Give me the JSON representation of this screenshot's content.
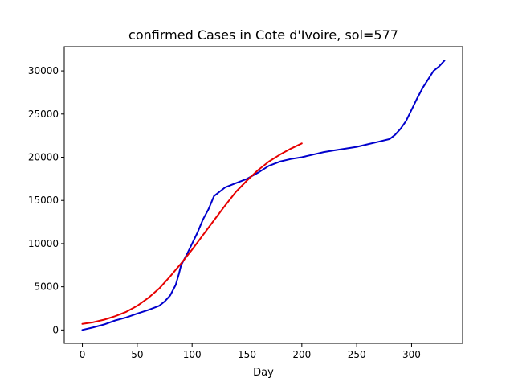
{
  "chart_data": {
    "type": "line",
    "title": "confirmed Cases in Cote d'Ivoire, sol=577",
    "xlabel": "Day",
    "ylabel": "",
    "xlim": [
      -16.5,
      346.5
    ],
    "ylim": [
      -1550,
      32800
    ],
    "xticks": [
      0,
      50,
      100,
      150,
      200,
      250,
      300
    ],
    "yticks": [
      0,
      5000,
      10000,
      15000,
      20000,
      25000,
      30000
    ],
    "grid": false,
    "series": [
      {
        "color": "#0000cc",
        "x": [
          0,
          10,
          20,
          30,
          40,
          50,
          60,
          70,
          75,
          80,
          85,
          88,
          90,
          95,
          100,
          105,
          110,
          115,
          120,
          125,
          130,
          140,
          150,
          160,
          170,
          180,
          190,
          200,
          210,
          220,
          230,
          240,
          250,
          260,
          270,
          280,
          285,
          290,
          295,
          300,
          305,
          310,
          315,
          320,
          325,
          330
        ],
        "y": [
          0,
          300,
          650,
          1100,
          1450,
          1900,
          2300,
          2800,
          3300,
          4000,
          5200,
          6500,
          7500,
          8700,
          10000,
          11300,
          12800,
          14000,
          15500,
          16000,
          16500,
          17000,
          17500,
          18200,
          19000,
          19500,
          19800,
          20000,
          20300,
          20600,
          20800,
          21000,
          21200,
          21500,
          21800,
          22100,
          22600,
          23300,
          24200,
          25500,
          26800,
          28000,
          29000,
          30000,
          30500,
          31200
        ]
      },
      {
        "color": "#e60000",
        "x": [
          0,
          10,
          20,
          30,
          40,
          50,
          60,
          70,
          80,
          90,
          100,
          110,
          120,
          130,
          140,
          150,
          160,
          170,
          180,
          190,
          200
        ],
        "y": [
          700,
          900,
          1200,
          1600,
          2100,
          2800,
          3700,
          4800,
          6200,
          7700,
          9300,
          11000,
          12700,
          14400,
          16000,
          17300,
          18500,
          19500,
          20300,
          21000,
          21600
        ]
      }
    ]
  }
}
